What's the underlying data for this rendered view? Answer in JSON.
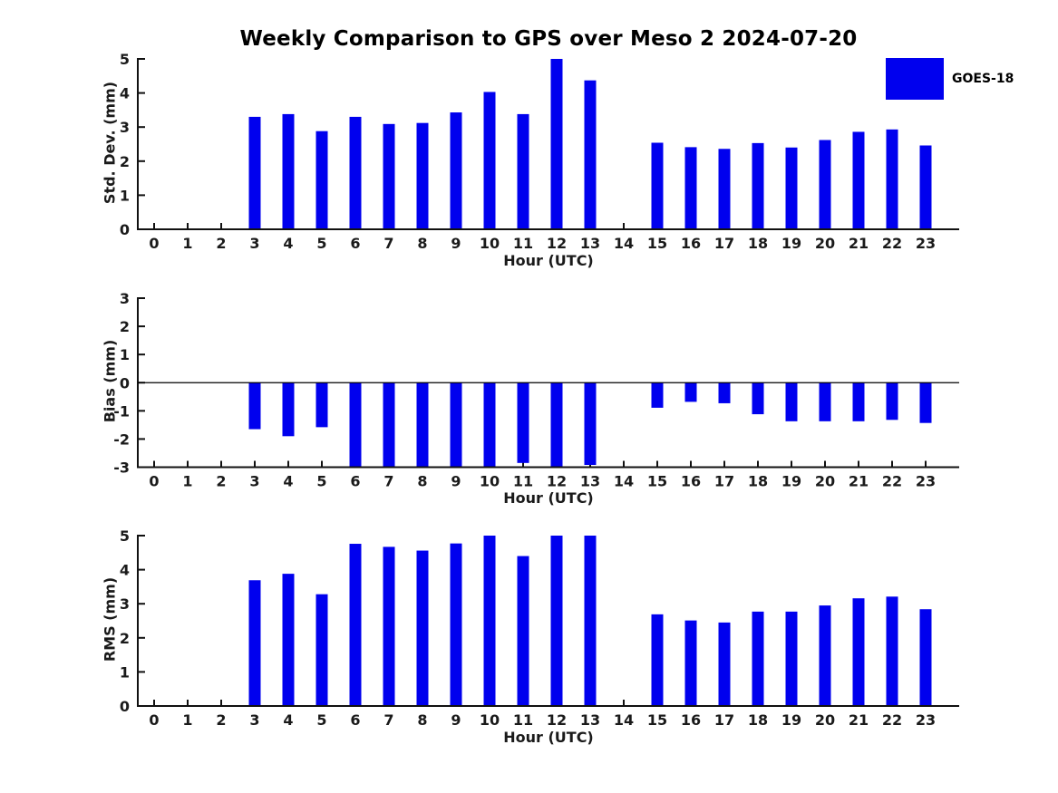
{
  "chart_data": {
    "type": "bar",
    "title": "Weekly Comparison to GPS over Meso 2 2024-07-20",
    "xlabel": "Hour (UTC)",
    "categories": [
      "0",
      "1",
      "2",
      "3",
      "4",
      "5",
      "6",
      "7",
      "8",
      "9",
      "10",
      "11",
      "12",
      "13",
      "14",
      "15",
      "16",
      "17",
      "18",
      "19",
      "20",
      "21",
      "22",
      "23"
    ],
    "legend": {
      "label": "GOES-18",
      "color": "#0000ee",
      "position": "upper-right-outside"
    },
    "bar_color": "#0000ee",
    "axis_color": "#111111",
    "text_color": "#1a1a1a",
    "grid": false,
    "subplots": [
      {
        "name": "std_dev",
        "ylabel": "Std. Dev. (mm)",
        "ylim": [
          0,
          5
        ],
        "yticks": [
          0,
          1,
          2,
          3,
          4,
          5
        ],
        "zero_line": false,
        "values": [
          null,
          null,
          null,
          3.3,
          3.38,
          2.88,
          3.3,
          3.09,
          3.12,
          3.43,
          4.03,
          3.38,
          5.0,
          4.37,
          null,
          2.54,
          2.41,
          2.36,
          2.53,
          2.4,
          2.62,
          2.86,
          2.93,
          2.46
        ]
      },
      {
        "name": "bias",
        "ylabel": "Bias (mm)",
        "ylim": [
          -3,
          3
        ],
        "yticks": [
          -3,
          -2,
          -1,
          0,
          1,
          2,
          3
        ],
        "zero_line": true,
        "values": [
          null,
          null,
          null,
          -1.65,
          -1.9,
          -1.58,
          -3.0,
          -3.0,
          -3.0,
          -3.0,
          -3.0,
          -2.85,
          -3.0,
          -2.92,
          null,
          -0.89,
          -0.68,
          -0.73,
          -1.12,
          -1.37,
          -1.37,
          -1.37,
          -1.32,
          -1.43
        ]
      },
      {
        "name": "rms",
        "ylabel": "RMS (mm)",
        "ylim": [
          0,
          5
        ],
        "yticks": [
          0,
          1,
          2,
          3,
          4,
          5
        ],
        "zero_line": false,
        "values": [
          null,
          null,
          null,
          3.69,
          3.88,
          3.28,
          4.76,
          4.67,
          4.56,
          4.77,
          5.0,
          4.4,
          5.0,
          5.0,
          null,
          2.69,
          2.51,
          2.45,
          2.77,
          2.77,
          2.95,
          3.16,
          3.21,
          2.84
        ]
      }
    ]
  }
}
